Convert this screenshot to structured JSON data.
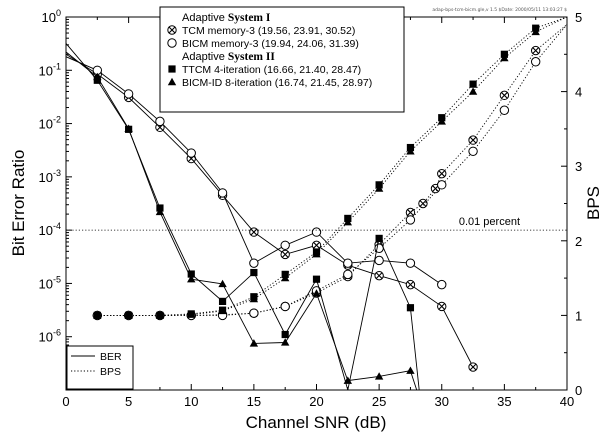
{
  "watermark": "adap-bps-tcm-bicm.gle,v 1.5 $Date: 2000/05/11 13:03:27 $",
  "chart_data": {
    "type": "line",
    "xlabel": "Channel SNR (dB)",
    "ylabel_left": "Bit Error Ratio",
    "ylabel_right": "BPS",
    "xlim": [
      0,
      40
    ],
    "ylim_left": [
      1e-07,
      1
    ],
    "ylim_left_scale": "log",
    "ylim_right": [
      0,
      5
    ],
    "x_ticks": [
      0,
      5,
      10,
      15,
      20,
      25,
      30,
      35,
      40
    ],
    "y_left_ticks": [
      {
        "value": 1,
        "mantissa": "10",
        "exp": "0"
      },
      {
        "value": 0.1,
        "mantissa": "10",
        "exp": "-1"
      },
      {
        "value": 0.01,
        "mantissa": "10",
        "exp": "-2"
      },
      {
        "value": 0.001,
        "mantissa": "10",
        "exp": "-3"
      },
      {
        "value": 0.0001,
        "mantissa": "10",
        "exp": "-4"
      },
      {
        "value": 1e-05,
        "mantissa": "10",
        "exp": "-5"
      },
      {
        "value": 1e-06,
        "mantissa": "10",
        "exp": "-6"
      }
    ],
    "y_right_ticks": [
      0,
      1,
      2,
      3,
      4,
      5
    ],
    "grid": false,
    "reference_line": {
      "ber": 0.0001,
      "label": "0.01 percent"
    },
    "legend_main": {
      "placement": "top-center",
      "groups": [
        {
          "heading_prefix": "Adaptive ",
          "heading_bold": "System I",
          "entries": [
            {
              "series": "tcm",
              "label": "TCM memory-3 (19.56, 23.91, 30.52)"
            },
            {
              "series": "bicm",
              "label": "BICM memory-3 (19.94, 24.06, 31.39)"
            }
          ]
        },
        {
          "heading_prefix": "Adaptive ",
          "heading_bold": "System II",
          "entries": [
            {
              "series": "ttcm",
              "label": "TTCM 4-iteration (16.66, 21.40, 28.47)"
            },
            {
              "series": "bicmid",
              "label": "BICM-ID 8-iteration (16.74, 21.45, 28.97)"
            }
          ]
        }
      ]
    },
    "legend_style": {
      "placement": "bottom-left",
      "entries": [
        {
          "label": "BER",
          "style": "solid"
        },
        {
          "label": "BPS",
          "style": "dotted"
        }
      ]
    },
    "series": [
      {
        "id": "tcm",
        "marker": "cross-circle",
        "ber": {
          "x": [
            0,
            2.5,
            5,
            7.5,
            10,
            12.5,
            15,
            17.5,
            20,
            22.5,
            25,
            27.5,
            30,
            32.5
          ],
          "y": [
            0.2,
            0.085,
            0.031,
            0.0085,
            0.0022,
            0.00045,
            9.2e-05,
            3.5e-05,
            5.2e-05,
            2.2e-05,
            1.4e-05,
            9.5e-06,
            3.7e-06,
            2.7e-07
          ]
        },
        "bps": {
          "x": [
            2.5,
            5,
            7.5,
            10,
            12.5,
            15,
            17.5,
            20,
            22.5,
            25,
            27.5,
            28.5,
            29.5,
            30,
            32.5,
            35,
            37.5,
            40
          ],
          "y": [
            1.0,
            1.0,
            1.0,
            1.0,
            1.01,
            1.03,
            1.12,
            1.3,
            1.52,
            1.95,
            2.38,
            2.5,
            2.7,
            2.9,
            3.35,
            3.95,
            4.55,
            4.9
          ]
        }
      },
      {
        "id": "bicm",
        "marker": "circle",
        "ber": {
          "x": [
            0,
            2.5,
            5,
            7.5,
            10,
            12.5,
            15,
            17.5,
            20,
            22.5,
            25,
            27.5,
            30
          ],
          "y": [
            0.18,
            0.1,
            0.036,
            0.011,
            0.0028,
            0.0005,
            2.4e-05,
            5.2e-05,
            9.2e-05,
            2.4e-05,
            2.7e-05,
            2.4e-05,
            9.5e-06
          ]
        },
        "bps": {
          "x": [
            2.5,
            5,
            7.5,
            10,
            12.5,
            15,
            17.5,
            20,
            22.5,
            25,
            27.5,
            30,
            32.5,
            35,
            37.5,
            40
          ],
          "y": [
            1.0,
            1.0,
            1.0,
            1.0,
            1.0,
            1.03,
            1.12,
            1.33,
            1.55,
            1.9,
            2.28,
            2.75,
            3.2,
            3.75,
            4.4,
            4.9
          ]
        }
      },
      {
        "id": "ttcm",
        "marker": "square",
        "ber": {
          "x": [
            0,
            2.5,
            5,
            7.5,
            10,
            12.5,
            15,
            17.5,
            20,
            22.5,
            25,
            27.5,
            28.2
          ],
          "y": [
            0.32,
            0.065,
            0.0078,
            0.00026,
            1.5e-05,
            4.6e-06,
            1.6e-05,
            1.1e-06,
            1.2e-05,
            1e-07,
            7e-05,
            3.5e-06,
            1e-07
          ]
        },
        "bps": {
          "x": [
            2.5,
            5,
            7.5,
            10,
            12.5,
            15,
            17.5,
            20,
            22.5,
            25,
            27.5,
            30,
            32.5,
            35,
            37.5,
            40
          ],
          "y": [
            1.0,
            1.0,
            1.0,
            1.02,
            1.07,
            1.25,
            1.55,
            1.85,
            2.3,
            2.75,
            3.25,
            3.65,
            4.1,
            4.5,
            4.85,
            5.0
          ]
        }
      },
      {
        "id": "bicmid",
        "marker": "triangle",
        "ber": {
          "x": [
            0,
            2.5,
            5,
            7.5,
            10,
            12.5,
            15,
            17.5,
            20,
            22.5,
            25,
            27.5,
            28
          ],
          "y": [
            0.22,
            0.075,
            0.008,
            0.00022,
            1.2e-05,
            9.8e-06,
            7.5e-07,
            7.8e-07,
            6.5e-06,
            1.5e-07,
            1.8e-07,
            2.3e-07,
            1e-07
          ]
        },
        "bps": {
          "x": [
            2.5,
            5,
            7.5,
            10,
            12.5,
            15,
            17.5,
            20,
            22.5,
            25,
            27.5,
            30,
            32.5,
            35,
            37.5,
            40
          ],
          "y": [
            1.0,
            1.0,
            1.0,
            1.01,
            1.06,
            1.22,
            1.5,
            1.82,
            2.25,
            2.7,
            3.2,
            3.6,
            4.0,
            4.45,
            4.8,
            5.0
          ]
        }
      }
    ]
  }
}
